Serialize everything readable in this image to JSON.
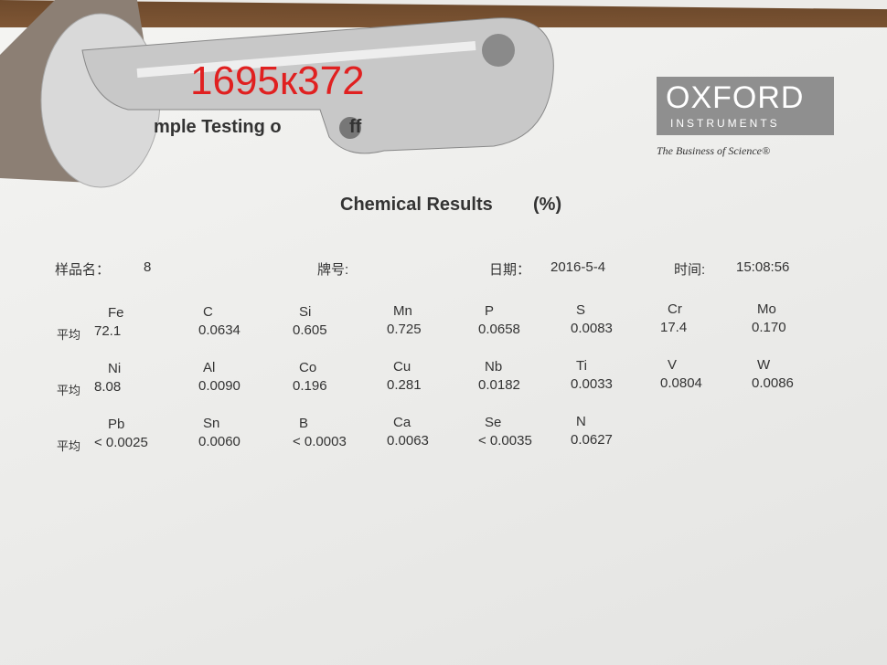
{
  "overlay": "1695к372",
  "header": {
    "partial_title": "mple Testing o",
    "partial_title_tail": "ff"
  },
  "logo": {
    "name": "OXFORD",
    "sub": "INSTRUMENTS",
    "tagline": "The Business of Science®"
  },
  "report": {
    "title": "Chemical Results",
    "unit": "(%)",
    "fields": [
      {
        "label": "样品名：",
        "value": "8"
      },
      {
        "label": "牌号:",
        "value": null
      },
      {
        "label": "日期：",
        "value": "2016-5-4"
      },
      {
        "label": "时间:",
        "value": "15:08:56"
      }
    ],
    "rows": [
      {
        "label": "平均",
        "elements": [
          {
            "symbol": "Fe",
            "value": "72.1"
          },
          {
            "symbol": "C",
            "value": "0.0634"
          },
          {
            "symbol": "Si",
            "value": "0.605"
          },
          {
            "symbol": "Mn",
            "value": "0.725"
          },
          {
            "symbol": "P",
            "value": "0.0658"
          },
          {
            "symbol": "S",
            "value": "0.0083"
          },
          {
            "symbol": "Cr",
            "value": "17.4"
          },
          {
            "symbol": "Mo",
            "value": "0.170"
          }
        ]
      },
      {
        "label": "平均",
        "elements": [
          {
            "symbol": "Ni",
            "value": "8.08"
          },
          {
            "symbol": "Al",
            "value": "0.0090"
          },
          {
            "symbol": "Co",
            "value": "0.196"
          },
          {
            "symbol": "Cu",
            "value": "0.281"
          },
          {
            "symbol": "Nb",
            "value": "0.0182"
          },
          {
            "symbol": "Ti",
            "value": "0.0033"
          },
          {
            "symbol": "V",
            "value": "0.0804"
          },
          {
            "symbol": "W",
            "value": "0.0086"
          }
        ]
      },
      {
        "label": "平均",
        "elements": [
          {
            "symbol": "Pb",
            "value": "< 0.0025"
          },
          {
            "symbol": "Sn",
            "value": "0.0060"
          },
          {
            "symbol": "B",
            "value": "< 0.0003"
          },
          {
            "symbol": "Ca",
            "value": "0.0063"
          },
          {
            "symbol": "Se",
            "value": "< 0.0035"
          },
          {
            "symbol": "N",
            "value": "0.0627"
          }
        ]
      }
    ]
  }
}
